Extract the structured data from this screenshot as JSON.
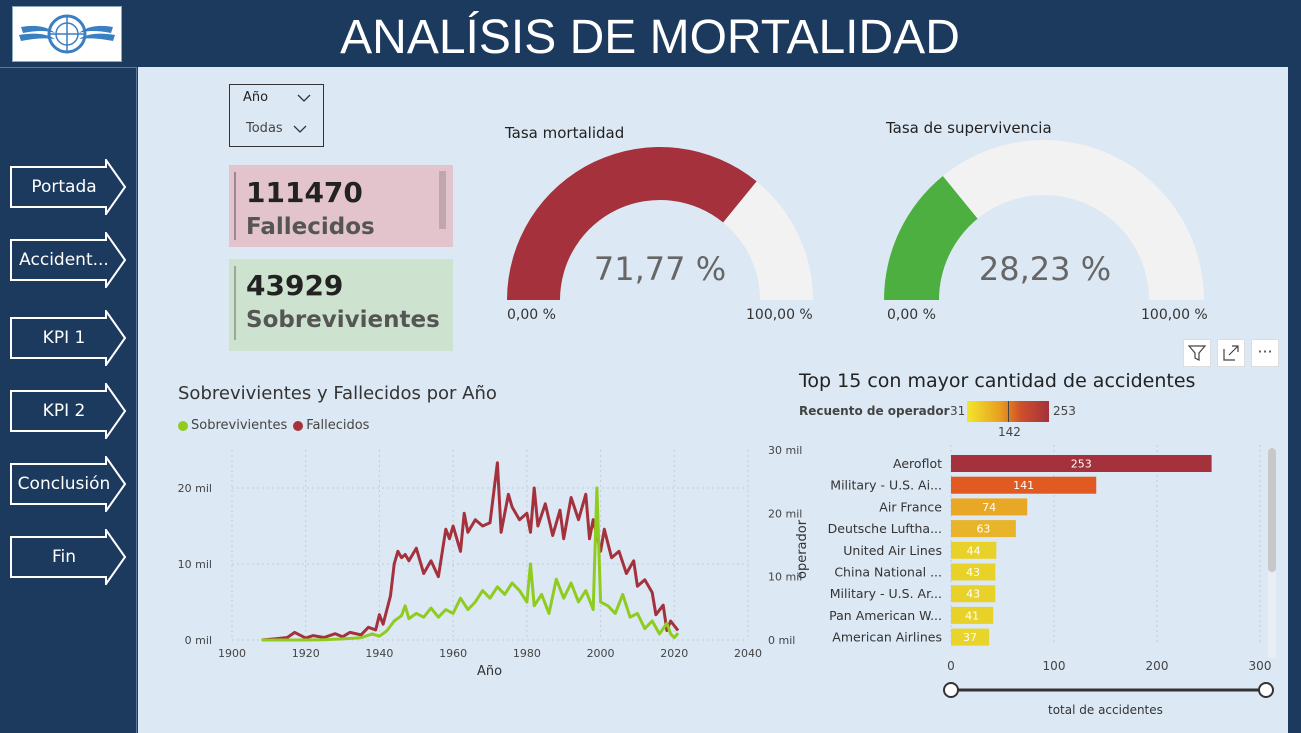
{
  "header": {
    "title": "ANALÍSIS DE MORTALIDAD",
    "logo_icon": "un-aviation-emblem"
  },
  "nav": [
    {
      "label": "Portada"
    },
    {
      "label": "Accident..."
    },
    {
      "label": "KPI 1"
    },
    {
      "label": "KPI 2"
    },
    {
      "label": "Conclusión"
    },
    {
      "label": "Fin"
    }
  ],
  "slicer": {
    "label": "Año",
    "value": "Todas"
  },
  "kpis": [
    {
      "value": "111470",
      "label": "Fallecidos",
      "color": "#e3c4cc"
    },
    {
      "value": "43929",
      "label": "Sobrevivientes",
      "color": "#cde3cf"
    }
  ],
  "gauges": [
    {
      "title": "Tasa mortalidad",
      "value_pct": 71.77,
      "value_label": "71,77 %",
      "min_label": "0,00 %",
      "max_label": "100,00 %",
      "color": "#a4313c"
    },
    {
      "title": "Tasa de supervivencia",
      "value_pct": 28.23,
      "value_label": "28,23 %",
      "min_label": "0,00 %",
      "max_label": "100,00 %",
      "color": "#4caf3f"
    }
  ],
  "line_chart": {
    "title": "Sobrevivientes y Fallecidos por Año",
    "legend": [
      {
        "name": "Sobrevivientes",
        "color": "#8fcc1f"
      },
      {
        "name": "Fallecidos",
        "color": "#a4313c"
      }
    ],
    "xlabel": "Año",
    "xticks": [
      "1900",
      "1920",
      "1940",
      "1960",
      "1980",
      "2000",
      "2020",
      "2040"
    ],
    "yticks_left": [
      "0 mil",
      "10 mil",
      "20 mil"
    ],
    "yticks_right": [
      "0 mil",
      "10 mil",
      "20 mil",
      "30 mil"
    ]
  },
  "bar_chart": {
    "title": "Top 15 con mayor cantidad de accidentes",
    "legend_title": "Recuento de operador",
    "legend_min": "31",
    "legend_mid": "142",
    "legend_max": "253",
    "ylabel": "operador",
    "xlabel": "total de accidentes",
    "xticks": [
      "0",
      "100",
      "200",
      "300"
    ]
  },
  "toolbar": {
    "filter_icon": "filter-icon",
    "focus_icon": "focus-mode-icon",
    "more_label": "···"
  },
  "chart_data": [
    {
      "type": "line",
      "title": "Sobrevivientes y Fallecidos por Año",
      "xlabel": "Año",
      "ylabel": "",
      "xlim": [
        1900,
        2040
      ],
      "ylim": [
        0,
        25000
      ],
      "y2lim": [
        0,
        30000
      ],
      "series": [
        {
          "name": "Sobrevivientes",
          "axis": "left",
          "points": [
            [
              1908,
              0
            ],
            [
              1915,
              0
            ],
            [
              1920,
              0
            ],
            [
              1925,
              30
            ],
            [
              1930,
              150
            ],
            [
              1935,
              300
            ],
            [
              1938,
              800
            ],
            [
              1940,
              500
            ],
            [
              1942,
              1200
            ],
            [
              1944,
              2500
            ],
            [
              1946,
              3200
            ],
            [
              1947,
              4500
            ],
            [
              1948,
              2800
            ],
            [
              1950,
              3500
            ],
            [
              1952,
              3000
            ],
            [
              1954,
              4200
            ],
            [
              1956,
              3000
            ],
            [
              1958,
              4000
            ],
            [
              1960,
              3500
            ],
            [
              1962,
              5500
            ],
            [
              1964,
              4000
            ],
            [
              1966,
              5000
            ],
            [
              1968,
              6500
            ],
            [
              1970,
              5500
            ],
            [
              1972,
              7000
            ],
            [
              1974,
              6000
            ],
            [
              1976,
              7500
            ],
            [
              1978,
              6500
            ],
            [
              1980,
              5000
            ],
            [
              1981,
              10000
            ],
            [
              1982,
              4500
            ],
            [
              1984,
              6000
            ],
            [
              1986,
              3500
            ],
            [
              1988,
              8000
            ],
            [
              1990,
              5500
            ],
            [
              1992,
              7500
            ],
            [
              1994,
              5000
            ],
            [
              1996,
              6500
            ],
            [
              1998,
              4000
            ],
            [
              1999,
              20000
            ],
            [
              2000,
              5000
            ],
            [
              2002,
              4500
            ],
            [
              2004,
              3500
            ],
            [
              2006,
              6000
            ],
            [
              2008,
              3000
            ],
            [
              2010,
              3500
            ],
            [
              2012,
              1500
            ],
            [
              2014,
              2500
            ],
            [
              2016,
              800
            ],
            [
              2018,
              2200
            ],
            [
              2019,
              800
            ],
            [
              2020,
              300
            ],
            [
              2021,
              900
            ]
          ]
        },
        {
          "name": "Fallecidos",
          "axis": "right",
          "points": [
            [
              1908,
              0
            ],
            [
              1912,
              200
            ],
            [
              1915,
              400
            ],
            [
              1917,
              1200
            ],
            [
              1920,
              300
            ],
            [
              1922,
              700
            ],
            [
              1925,
              400
            ],
            [
              1928,
              1000
            ],
            [
              1930,
              500
            ],
            [
              1932,
              1200
            ],
            [
              1935,
              800
            ],
            [
              1937,
              2000
            ],
            [
              1939,
              1600
            ],
            [
              1940,
              4000
            ],
            [
              1941,
              2500
            ],
            [
              1943,
              7000
            ],
            [
              1944,
              12000
            ],
            [
              1945,
              14000
            ],
            [
              1946,
              13000
            ],
            [
              1947,
              13500
            ],
            [
              1948,
              12500
            ],
            [
              1950,
              14500
            ],
            [
              1952,
              10500
            ],
            [
              1954,
              12500
            ],
            [
              1956,
              10000
            ],
            [
              1958,
              17500
            ],
            [
              1959,
              16000
            ],
            [
              1960,
              18000
            ],
            [
              1962,
              14000
            ],
            [
              1963,
              20000
            ],
            [
              1964,
              17000
            ],
            [
              1966,
              19000
            ],
            [
              1968,
              18000
            ],
            [
              1970,
              18500
            ],
            [
              1972,
              28000
            ],
            [
              1973,
              17000
            ],
            [
              1975,
              23000
            ],
            [
              1976,
              21000
            ],
            [
              1978,
              19000
            ],
            [
              1980,
              20000
            ],
            [
              1981,
              17000
            ],
            [
              1982,
              24000
            ],
            [
              1983,
              18000
            ],
            [
              1985,
              21500
            ],
            [
              1987,
              16500
            ],
            [
              1989,
              20500
            ],
            [
              1990,
              16000
            ],
            [
              1992,
              22500
            ],
            [
              1994,
              19000
            ],
            [
              1996,
              23000
            ],
            [
              1997,
              16000
            ],
            [
              1998,
              19000
            ],
            [
              2000,
              14000
            ],
            [
              2001,
              17500
            ],
            [
              2003,
              13000
            ],
            [
              2005,
              14000
            ],
            [
              2007,
              10500
            ],
            [
              2009,
              12500
            ],
            [
              2010,
              8500
            ],
            [
              2012,
              9500
            ],
            [
              2014,
              7500
            ],
            [
              2015,
              4000
            ],
            [
              2017,
              5500
            ],
            [
              2018,
              1500
            ],
            [
              2019,
              3000
            ],
            [
              2021,
              1500
            ]
          ]
        }
      ]
    },
    {
      "type": "bar",
      "title": "Top 15 con mayor cantidad de accidentes",
      "xlabel": "total de accidentes",
      "ylabel": "operador",
      "xlim": [
        0,
        300
      ],
      "categories": [
        "Aeroflot",
        "Military - U.S. Ai...",
        "Air France",
        "Deutsche Luftha...",
        "United Air Lines",
        "China National ...",
        "Military - U.S. Ar...",
        "Pan American W...",
        "American Airlines"
      ],
      "values": [
        253,
        141,
        74,
        63,
        44,
        43,
        43,
        41,
        37
      ],
      "value_labels": [
        "253",
        "141",
        "74",
        "63",
        "44",
        "43",
        "43",
        "41",
        "37"
      ],
      "colors": [
        "#a4313c",
        "#e05a22",
        "#e8a826",
        "#e8b42a",
        "#e8d22a",
        "#e8d22a",
        "#e8d22a",
        "#e8d22a",
        "#e8d42a"
      ]
    }
  ]
}
